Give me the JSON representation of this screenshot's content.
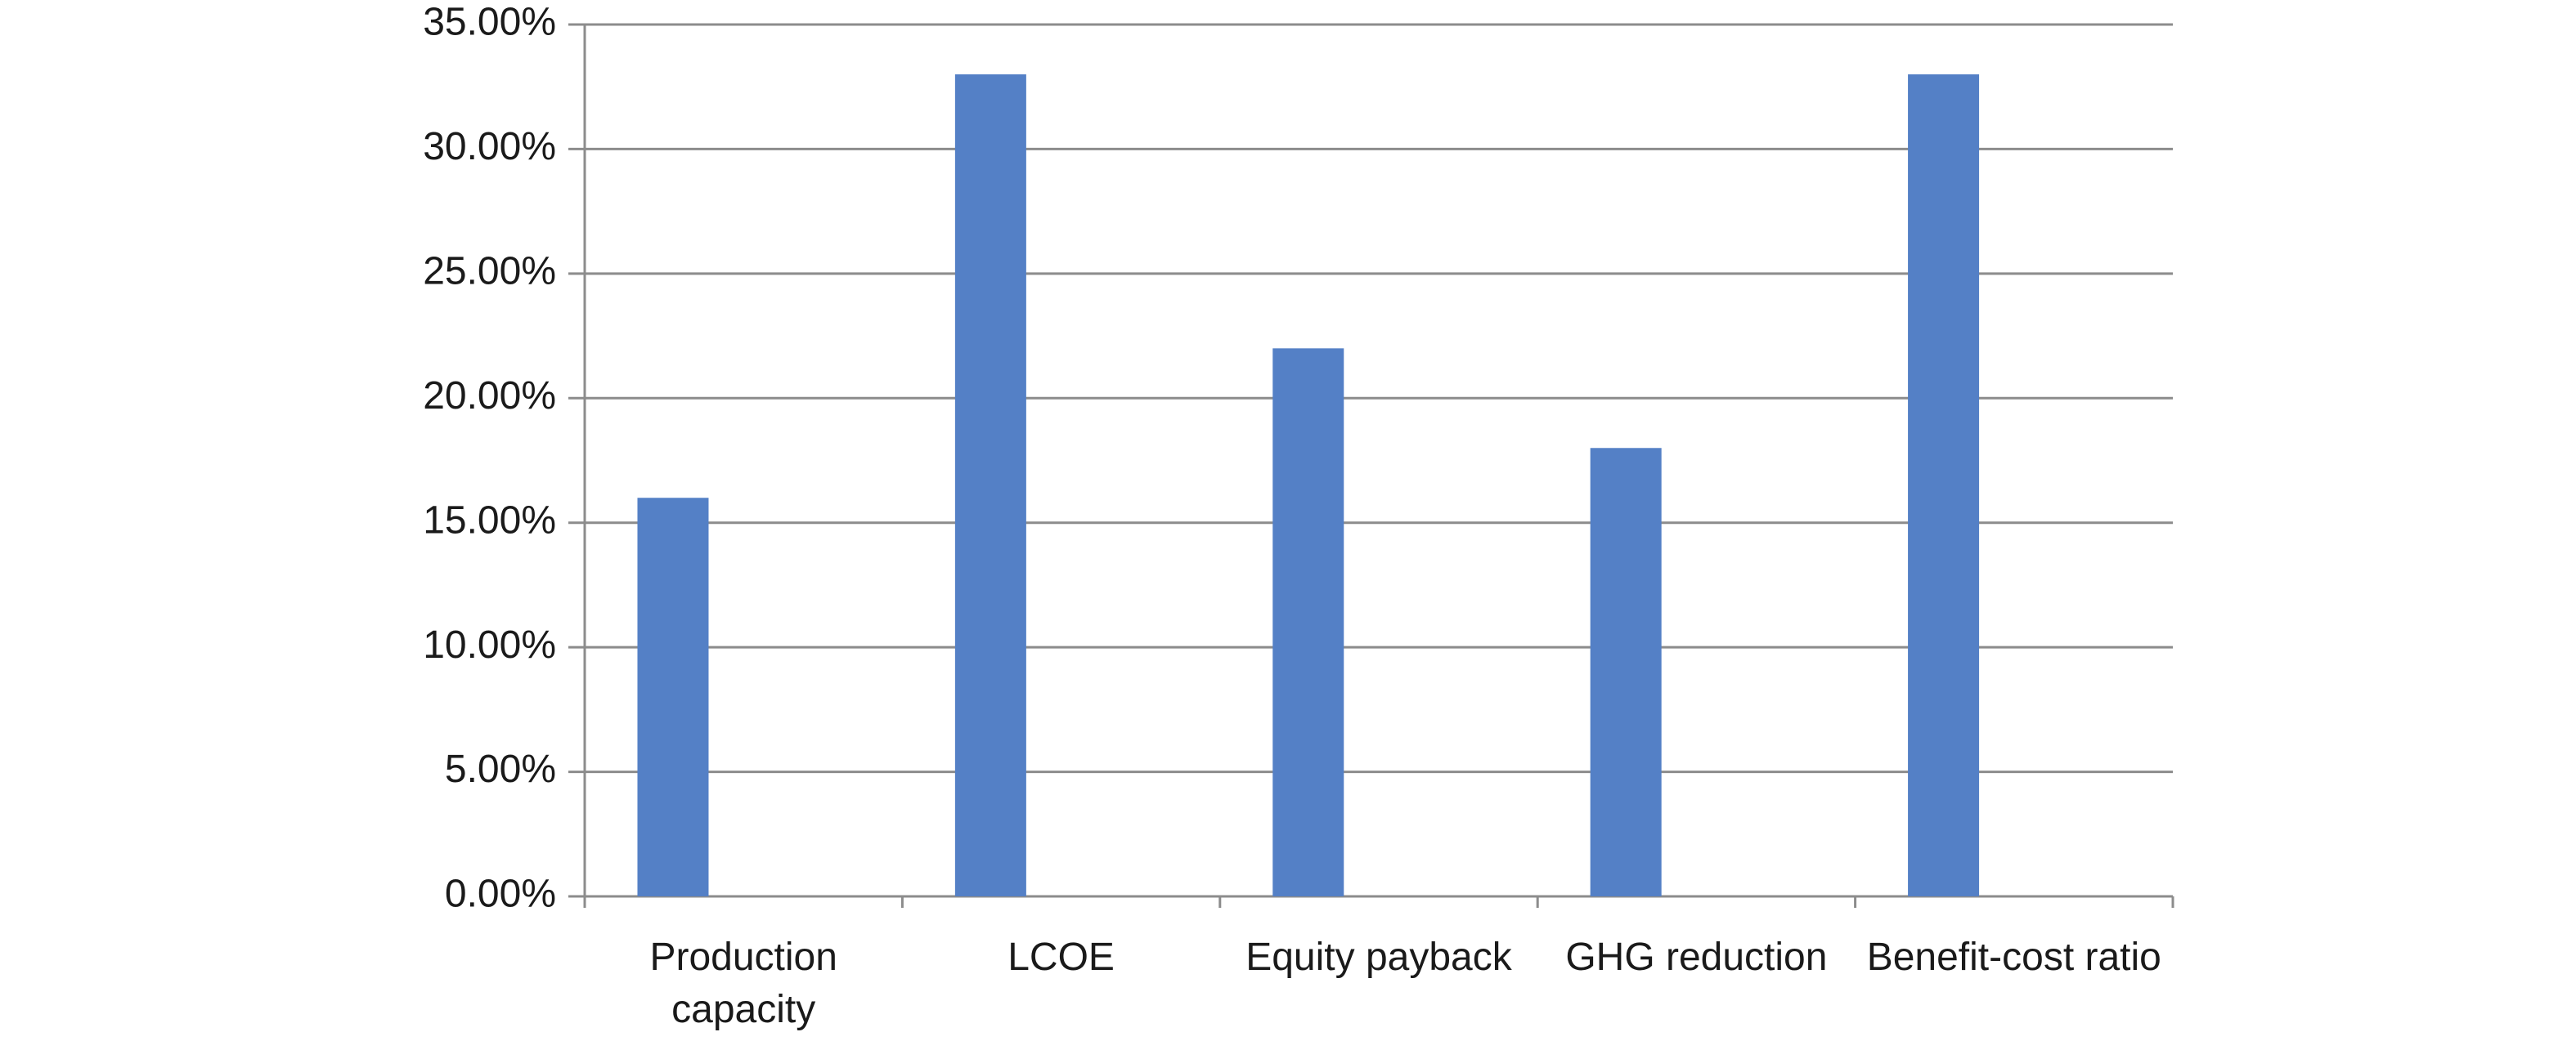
{
  "chart_data": {
    "type": "bar",
    "categories": [
      "Production capacity",
      "LCOE",
      "Equity payback",
      "GHG reduction",
      "Benefit-cost ratio"
    ],
    "values": [
      16,
      33,
      22,
      18,
      33
    ],
    "color": "#5480c6",
    "ylim": [
      0,
      35
    ],
    "yticks": [
      {
        "value": 0,
        "label": "0.00%"
      },
      {
        "value": 5,
        "label": "5.00%"
      },
      {
        "value": 10,
        "label": "10.00%"
      },
      {
        "value": 15,
        "label": "15.00%"
      },
      {
        "value": 20,
        "label": "20.00%"
      },
      {
        "value": 25,
        "label": "25.00%"
      },
      {
        "value": 30,
        "label": "30.00%"
      },
      {
        "value": 35,
        "label": "35.00%"
      }
    ],
    "grid": true
  }
}
